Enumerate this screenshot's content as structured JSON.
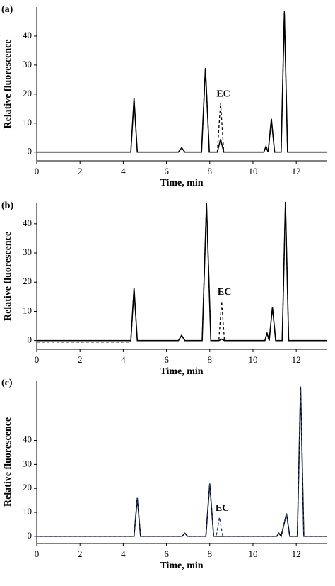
{
  "chart_data": [
    {
      "type": "line",
      "panel_label": "(a)",
      "xlabel": "Time, min",
      "ylabel": "Relative fluorescence",
      "annotation": "EC",
      "xlim": [
        0,
        13.4
      ],
      "ylim": [
        -3,
        50
      ],
      "xticks": [
        0,
        2,
        4,
        6,
        8,
        10,
        12
      ],
      "yticks": [
        0,
        10,
        20,
        30,
        40
      ],
      "x": [
        0,
        4.35,
        4.5,
        4.65,
        6.55,
        6.7,
        6.85,
        7.62,
        7.8,
        7.98,
        8.35,
        8.5,
        8.65,
        10.5,
        10.6,
        10.7,
        10.85,
        11.0,
        11.3,
        11.45,
        11.6,
        13.4
      ],
      "series": [
        {
          "color": "#000000",
          "dash": false,
          "values": [
            0,
            0,
            18.5,
            0,
            0,
            1.5,
            0,
            0,
            29,
            0,
            0,
            4.5,
            0,
            0,
            2,
            0,
            11.5,
            0,
            0,
            48,
            0,
            0
          ]
        },
        {
          "color": "#000000",
          "dash": true,
          "values": [
            0,
            0,
            18.5,
            0,
            0,
            1.5,
            0,
            0,
            29,
            0,
            0,
            17,
            0,
            0,
            2,
            0,
            11,
            0,
            0,
            48.5,
            0,
            0
          ]
        }
      ]
    },
    {
      "type": "line",
      "panel_label": "(b)",
      "xlabel": "Time, min",
      "ylabel": "Relative fluorescence",
      "annotation": "EC",
      "xlim": [
        0,
        13.4
      ],
      "ylim": [
        -3,
        47
      ],
      "xticks": [
        0,
        2,
        4,
        6,
        8,
        10,
        12
      ],
      "yticks": [
        0,
        10,
        20,
        30,
        40
      ],
      "x": [
        0,
        4.35,
        4.5,
        4.65,
        6.55,
        6.7,
        6.85,
        7.65,
        7.85,
        8.05,
        8.42,
        8.55,
        8.68,
        10.55,
        10.65,
        10.75,
        10.9,
        11.05,
        11.35,
        11.5,
        11.65,
        13.4
      ],
      "series": [
        {
          "color": "#000000",
          "dash": false,
          "values": [
            0,
            0,
            18,
            0,
            0,
            1.8,
            0,
            0,
            47,
            0,
            0,
            0.5,
            0,
            0,
            2.5,
            0,
            11.5,
            0,
            0,
            47.5,
            0,
            0
          ]
        },
        {
          "color": "#000000",
          "dash": true,
          "values": [
            -0.5,
            -0.5,
            18,
            0,
            0,
            1.8,
            0,
            0,
            47,
            0,
            0,
            13.5,
            0,
            0,
            2.5,
            0,
            11.5,
            0,
            0,
            47.5,
            0,
            0
          ]
        }
      ]
    },
    {
      "type": "line",
      "panel_label": "(c)",
      "xlabel": "Time, min",
      "ylabel": "Relative fluorescence",
      "annotation": "EC",
      "xlim": [
        0,
        13.4
      ],
      "ylim": [
        -3,
        65
      ],
      "xticks": [
        0,
        2,
        4,
        6,
        8,
        10,
        12
      ],
      "yticks": [
        0,
        10,
        20,
        30,
        40
      ],
      "x": [
        0,
        4.5,
        4.65,
        4.8,
        6.72,
        6.85,
        6.98,
        7.82,
        8.0,
        8.18,
        8.3,
        8.45,
        8.6,
        11.1,
        11.2,
        11.3,
        11.55,
        11.7,
        12.05,
        12.2,
        12.35,
        13.4
      ],
      "series": [
        {
          "color": "#000000",
          "dash": false,
          "values": [
            0,
            0,
            16,
            0,
            0,
            1.3,
            0,
            0,
            22,
            0,
            0,
            0,
            0,
            0,
            1.3,
            0,
            9.5,
            0,
            0,
            62.5,
            0,
            0
          ]
        },
        {
          "color": "#1f3a7a",
          "dash": true,
          "values": [
            0,
            0,
            16,
            0,
            0,
            1.3,
            0,
            0,
            22,
            0,
            0,
            8,
            0,
            0,
            1.3,
            0,
            9.5,
            0,
            0,
            62.5,
            0,
            0
          ]
        }
      ]
    }
  ]
}
